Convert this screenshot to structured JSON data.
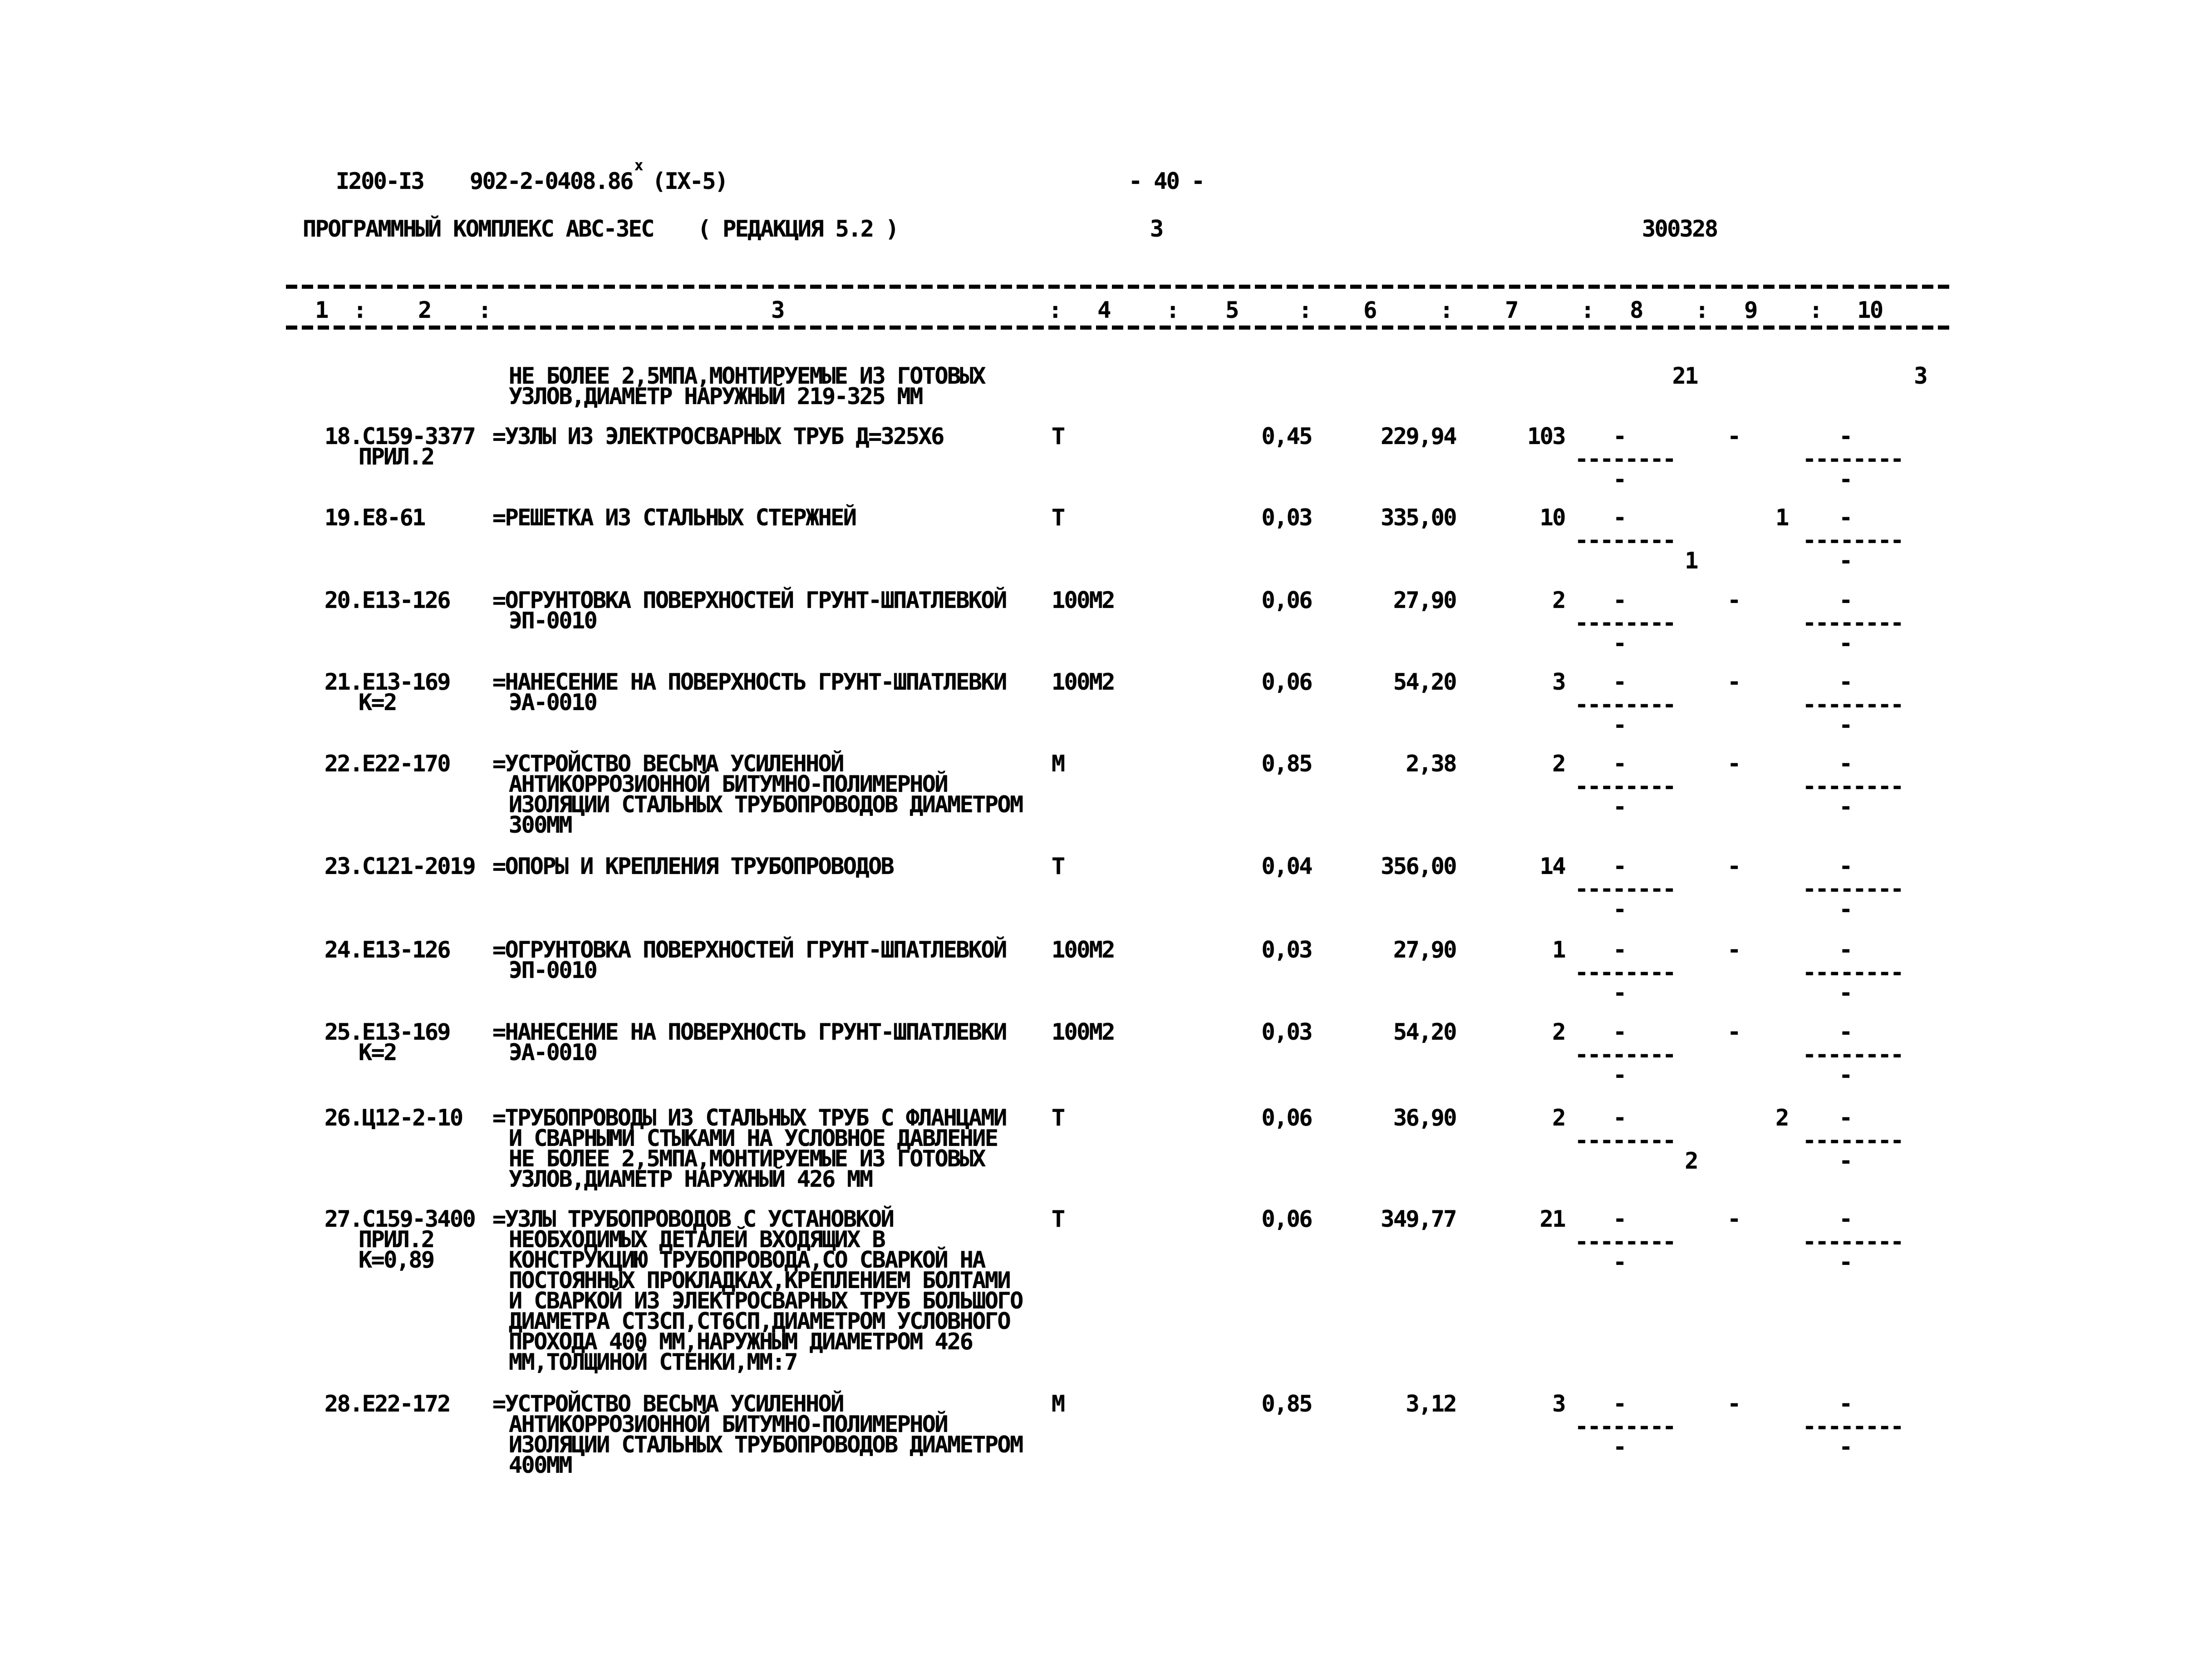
{
  "header": {
    "doc_prefix": "I200-I3",
    "doc_code": "902-2-0408.86",
    "doc_sup": "х",
    "doc_series": "(IX-5)",
    "page_number": "- 40 -",
    "program_name": "ПРОГРАММНЫЙ КОМПЛЕКС АВС-3ЕС",
    "edition": "( РЕДАКЦИЯ 5.2 )",
    "sheet_number": "3",
    "order_number": "300328"
  },
  "table": {
    "column_labels": [
      "1",
      "2",
      "3",
      "4",
      "5",
      "6",
      "7",
      "8",
      "9",
      "10"
    ],
    "separator": ":",
    "divider_dashes": "--------",
    "carryover": {
      "desc_lines": [
        "НЕ БОЛЕЕ 2,5МПА,МОНТИРУЕМЫЕ ИЗ ГОТОВЫХ",
        "УЗЛОВ,ДИАМЕТР НАРУЖНЫЙ 219-325 ММ"
      ],
      "col8_top": "21",
      "col10_top": "3"
    },
    "rows": [
      {
        "id_lines": [
          "18.С159-3377",
          "ПРИЛ.2"
        ],
        "desc_lines": [
          "=УЗЛЫ ИЗ ЭЛЕКТРОСВАРНЫХ ТРУБ Д=325Х6"
        ],
        "unit": "Т",
        "qty": "0,45",
        "price": "229,94",
        "count": "103",
        "col8": {
          "top": "-",
          "bottom": "-"
        },
        "col9": "-",
        "col10": {
          "top": "-",
          "bottom": "-"
        }
      },
      {
        "id_lines": [
          "19.Е8-61"
        ],
        "desc_lines": [
          "=РЕШЕТКА ИЗ СТАЛЬНЫХ СТЕРЖНЕЙ"
        ],
        "unit": "Т",
        "qty": "0,03",
        "price": "335,00",
        "count": "10",
        "col8": {
          "top": "-",
          "bottom": "1"
        },
        "col9": "1",
        "col10": {
          "top": "-",
          "bottom": "-"
        }
      },
      {
        "id_lines": [
          "20.Е13-126"
        ],
        "desc_lines": [
          "=ОГРУНТОВКА ПОВЕРХНОСТЕЙ ГРУНТ-ШПАТЛЕВКОЙ",
          "ЭП-0010"
        ],
        "unit": "100М2",
        "qty": "0,06",
        "price": "27,90",
        "count": "2",
        "col8": {
          "top": "-",
          "bottom": "-"
        },
        "col9": "-",
        "col10": {
          "top": "-",
          "bottom": "-"
        }
      },
      {
        "id_lines": [
          "21.Е13-169",
          "К=2"
        ],
        "desc_lines": [
          "=НАНЕСЕНИЕ НА ПОВЕРХНОСТЬ ГРУНТ-ШПАТЛЕВКИ",
          "ЭА-0010"
        ],
        "unit": "100М2",
        "qty": "0,06",
        "price": "54,20",
        "count": "3",
        "col8": {
          "top": "-",
          "bottom": "-"
        },
        "col9": "-",
        "col10": {
          "top": "-",
          "bottom": "-"
        }
      },
      {
        "id_lines": [
          "22.Е22-170"
        ],
        "desc_lines": [
          "=УСТРОЙСТВО ВЕСЬМА УСИЛЕННОЙ",
          "АНТИКОРРОЗИОННОЙ БИТУМНО-ПОЛИМЕРНОЙ",
          "ИЗОЛЯЦИИ СТАЛЬНЫХ ТРУБОПРОВОДОВ ДИАМЕТРОМ",
          "300ММ"
        ],
        "unit": "М",
        "qty": "0,85",
        "price": "2,38",
        "count": "2",
        "col8": {
          "top": "-",
          "bottom": "-"
        },
        "col9": "-",
        "col10": {
          "top": "-",
          "bottom": "-"
        }
      },
      {
        "id_lines": [
          "23.С121-2019"
        ],
        "desc_lines": [
          "=ОПОРЫ И КРЕПЛЕНИЯ ТРУБОПРОВОДОВ"
        ],
        "unit": "Т",
        "qty": "0,04",
        "price": "356,00",
        "count": "14",
        "col8": {
          "top": "-",
          "bottom": "-"
        },
        "col9": "-",
        "col10": {
          "top": "-",
          "bottom": "-"
        }
      },
      {
        "id_lines": [
          "24.Е13-126"
        ],
        "desc_lines": [
          "=ОГРУНТОВКА ПОВЕРХНОСТЕЙ ГРУНТ-ШПАТЛЕВКОЙ",
          "ЭП-0010"
        ],
        "unit": "100М2",
        "qty": "0,03",
        "price": "27,90",
        "count": "1",
        "col8": {
          "top": "-",
          "bottom": "-"
        },
        "col9": "-",
        "col10": {
          "top": "-",
          "bottom": "-"
        }
      },
      {
        "id_lines": [
          "25.Е13-169",
          "К=2"
        ],
        "desc_lines": [
          "=НАНЕСЕНИЕ НА ПОВЕРХНОСТЬ ГРУНТ-ШПАТЛЕВКИ",
          "ЭА-0010"
        ],
        "unit": "100М2",
        "qty": "0,03",
        "price": "54,20",
        "count": "2",
        "col8": {
          "top": "-",
          "bottom": "-"
        },
        "col9": "-",
        "col10": {
          "top": "-",
          "bottom": "-"
        }
      },
      {
        "id_lines": [
          "26.Ц12-2-10"
        ],
        "desc_lines": [
          "=ТРУБОПРОВОДЫ ИЗ СТАЛЬНЫХ ТРУБ С ФЛАНЦАМИ",
          "И СВАРНЫМИ СТЫКАМИ НА УСЛОВНОЕ ДАВЛЕНИЕ",
          "НЕ БОЛЕЕ 2,5МПА,МОНТИРУЕМЫЕ ИЗ ГОТОВЫХ",
          "УЗЛОВ,ДИАМЕТР НАРУЖНЫЙ 426 ММ"
        ],
        "unit": "Т",
        "qty": "0,06",
        "price": "36,90",
        "count": "2",
        "col8": {
          "top": "-",
          "bottom": "2"
        },
        "col9": "2",
        "col10": {
          "top": "-",
          "bottom": "-"
        }
      },
      {
        "id_lines": [
          "27.С159-3400",
          "ПРИЛ.2",
          "К=0,89"
        ],
        "desc_lines": [
          "=УЗЛЫ ТРУБОПРОВОДОВ С УСТАНОВКОЙ",
          "НЕОБХОДИМЫХ ДЕТАЛЕЙ ВХОДЯЩИХ В",
          "КОНСТРУКЦИЮ ТРУБОПРОВОДА,СО СВАРКОЙ НА",
          "ПОСТОЯННЫХ ПРОКЛАДКАХ,КРЕПЛЕНИЕМ БОЛТАМИ",
          "И СВАРКОЙ ИЗ ЭЛЕКТРОСВАРНЫХ ТРУБ БОЛЬШОГО",
          "ДИАМЕТРА СТ3СП,СТ6СП,ДИАМЕТРОМ УСЛОВНОГО",
          "ПРОХОДА 400 ММ,НАРУЖНЫМ ДИАМЕТРОМ 426",
          "ММ,ТОЛЩИНОЙ СТЕНКИ,ММ:7"
        ],
        "unit": "Т",
        "qty": "0,06",
        "price": "349,77",
        "count": "21",
        "col8": {
          "top": "-",
          "bottom": "-"
        },
        "col9": "-",
        "col10": {
          "top": "-",
          "bottom": "-"
        }
      },
      {
        "id_lines": [
          "28.Е22-172"
        ],
        "desc_lines": [
          "=УСТРОЙСТВО ВЕСЬМА УСИЛЕННОЙ",
          "АНТИКОРРОЗИОННОЙ БИТУМНО-ПОЛИМЕРНОЙ",
          "ИЗОЛЯЦИИ СТАЛЬНЫХ ТРУБОПРОВОДОВ ДИАМЕТРОМ",
          "400ММ"
        ],
        "unit": "М",
        "qty": "0,85",
        "price": "3,12",
        "count": "3",
        "col8": {
          "top": "-",
          "bottom": "-"
        },
        "col9": "-",
        "col10": {
          "top": "-",
          "bottom": "-"
        }
      }
    ]
  }
}
